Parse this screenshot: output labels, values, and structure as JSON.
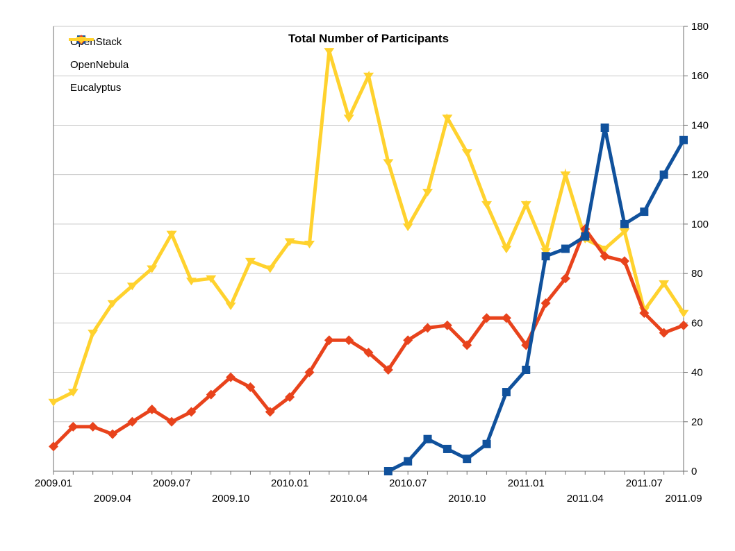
{
  "chart_data": {
    "type": "line",
    "title": "Total Number of Participants",
    "x": [
      "2009.01",
      "2009.02",
      "2009.03",
      "2009.04",
      "2009.05",
      "2009.06",
      "2009.07",
      "2009.08",
      "2009.09",
      "2009.10",
      "2009.11",
      "2009.12",
      "2010.01",
      "2010.02",
      "2010.03",
      "2010.04",
      "2010.05",
      "2010.06",
      "2010.07",
      "2010.08",
      "2010.09",
      "2010.10",
      "2010.11",
      "2010.12",
      "2011.01",
      "2011.02",
      "2011.03",
      "2011.04",
      "2011.05",
      "2011.06",
      "2011.07",
      "2011.08",
      "2011.09"
    ],
    "ylim": [
      0,
      180
    ],
    "ytick_step": 20,
    "y_axis_side": "right",
    "grid": true,
    "legend_position": "top-left",
    "series": [
      {
        "name": "OpenStack",
        "marker": "square",
        "color": "#10519C",
        "values": [
          null,
          null,
          null,
          null,
          null,
          null,
          null,
          null,
          null,
          null,
          null,
          null,
          null,
          null,
          null,
          null,
          null,
          0,
          4,
          13,
          9,
          5,
          11,
          32,
          41,
          87,
          90,
          95,
          139,
          100,
          105,
          120,
          134
        ]
      },
      {
        "name": "OpenNebula",
        "marker": "diamond",
        "color": "#E8431C",
        "values": [
          10,
          18,
          18,
          15,
          20,
          25,
          20,
          24,
          31,
          38,
          34,
          24,
          30,
          40,
          53,
          53,
          48,
          41,
          53,
          58,
          59,
          51,
          62,
          62,
          51,
          68,
          78,
          98,
          87,
          85,
          64,
          56,
          59
        ]
      },
      {
        "name": "Eucalyptus",
        "marker": "triangle-down",
        "color": "#FFD22E",
        "values": [
          28,
          32,
          56,
          68,
          75,
          82,
          96,
          77,
          78,
          67,
          85,
          82,
          93,
          92,
          170,
          143,
          160,
          125,
          99,
          113,
          143,
          129,
          108,
          90,
          108,
          89,
          120,
          94,
          90,
          97,
          65,
          76,
          64
        ]
      }
    ],
    "xticks": [
      {
        "label": "2009.01",
        "index": 0,
        "row": 1
      },
      {
        "label": "2009.04",
        "index": 3,
        "row": 2
      },
      {
        "label": "2009.07",
        "index": 6,
        "row": 1
      },
      {
        "label": "2009.10",
        "index": 9,
        "row": 2
      },
      {
        "label": "2010.01",
        "index": 12,
        "row": 1
      },
      {
        "label": "2010.04",
        "index": 15,
        "row": 2
      },
      {
        "label": "2010.07",
        "index": 18,
        "row": 1
      },
      {
        "label": "2010.10",
        "index": 21,
        "row": 2
      },
      {
        "label": "2011.01",
        "index": 24,
        "row": 1
      },
      {
        "label": "2011.04",
        "index": 27,
        "row": 2
      },
      {
        "label": "2011.07",
        "index": 30,
        "row": 1
      },
      {
        "label": "2011.09",
        "index": 32,
        "row": 2
      }
    ],
    "colors": {
      "grid": "#C9C9C9",
      "axis": "#6E6E6E",
      "text": "#000000",
      "background": "#FFFFFF"
    }
  }
}
